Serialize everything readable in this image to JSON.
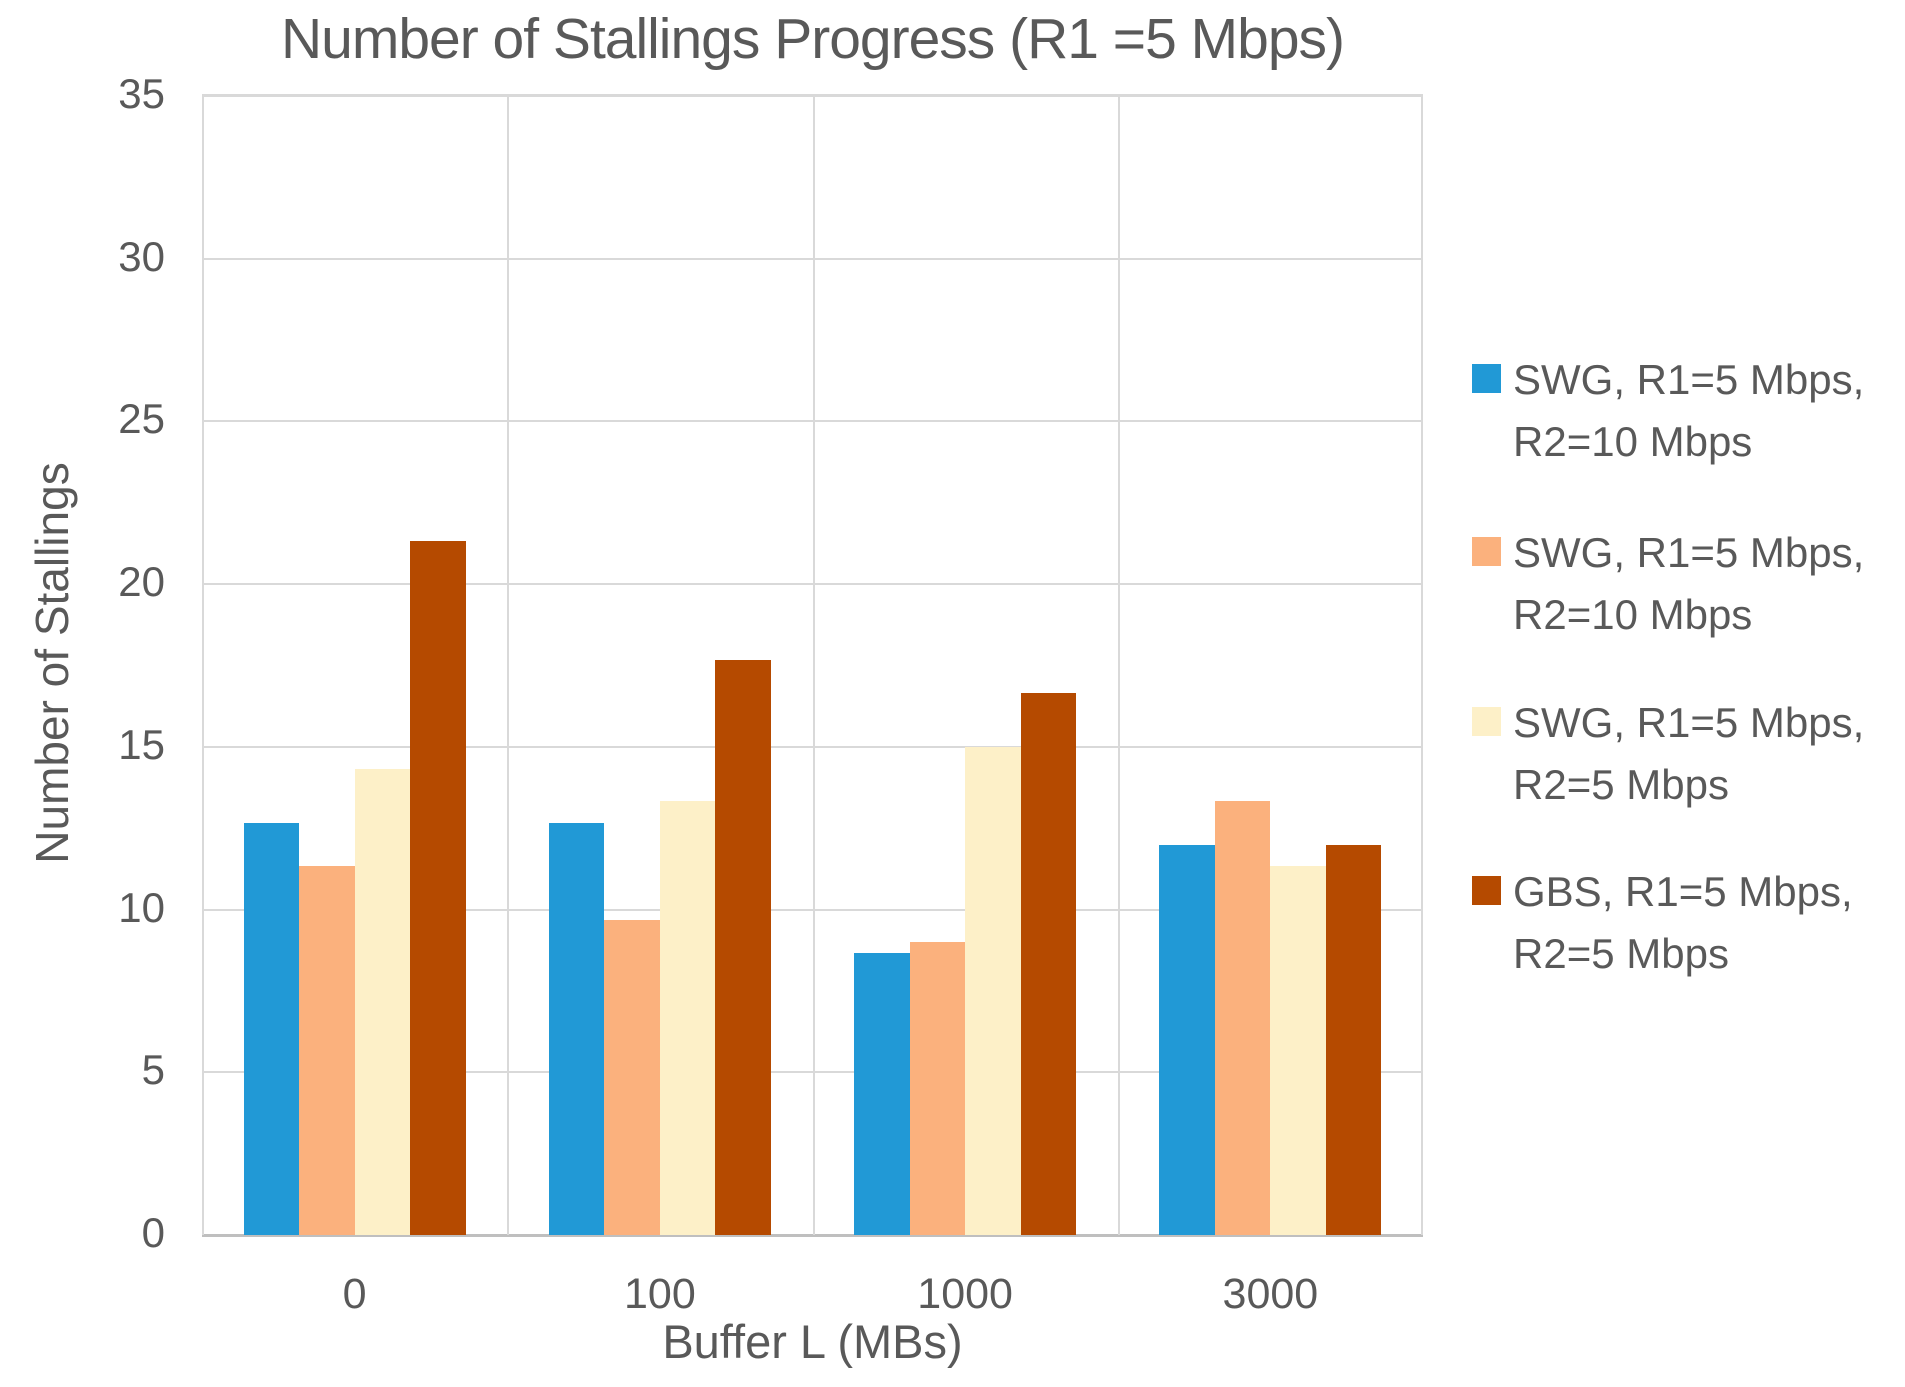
{
  "chart_data": {
    "type": "bar",
    "title": "Number of Stallings Progress (R1 =5 Mbps)",
    "xlabel": "Buffer L (MBs)",
    "ylabel": "Number of Stallings",
    "categories": [
      "0",
      "100",
      "1000",
      "3000"
    ],
    "series": [
      {
        "name": "SWG, R1=5 Mbps, R2=10 Mbps",
        "label_lines": [
          "SWG, R1=5 Mbps,",
          "R2=10 Mbps"
        ],
        "color": "#2199D6",
        "values": [
          12.67,
          12.67,
          8.67,
          12.0
        ]
      },
      {
        "name": "SWG, R1=5 Mbps, R2=10 Mbps",
        "label_lines": [
          "SWG, R1=5 Mbps,",
          "R2=10 Mbps"
        ],
        "color": "#FBB17D",
        "values": [
          11.33,
          9.67,
          9.0,
          13.33
        ]
      },
      {
        "name": "SWG, R1=5 Mbps, R2=5 Mbps",
        "label_lines": [
          "SWG, R1=5 Mbps,",
          "R2=5 Mbps"
        ],
        "color": "#FDF0C8",
        "values": [
          14.33,
          13.33,
          15.0,
          11.33
        ]
      },
      {
        "name": "GBS, R1=5 Mbps, R2=5 Mbps",
        "label_lines": [
          "GBS, R1=5 Mbps,",
          "R2=5 Mbps"
        ],
        "color": "#B54A00",
        "values": [
          21.33,
          17.67,
          16.67,
          12.0
        ]
      }
    ],
    "ylim": [
      0,
      35
    ],
    "yticks": [
      0,
      5,
      10,
      15,
      20,
      25,
      30,
      35
    ],
    "grid": true,
    "legend_position": "right"
  },
  "styles": {
    "text_color": "#595959",
    "gridline_color": "#D9D9D9",
    "axis_line_color": "#BFBFBF",
    "background_color": "#FFFFFF"
  }
}
